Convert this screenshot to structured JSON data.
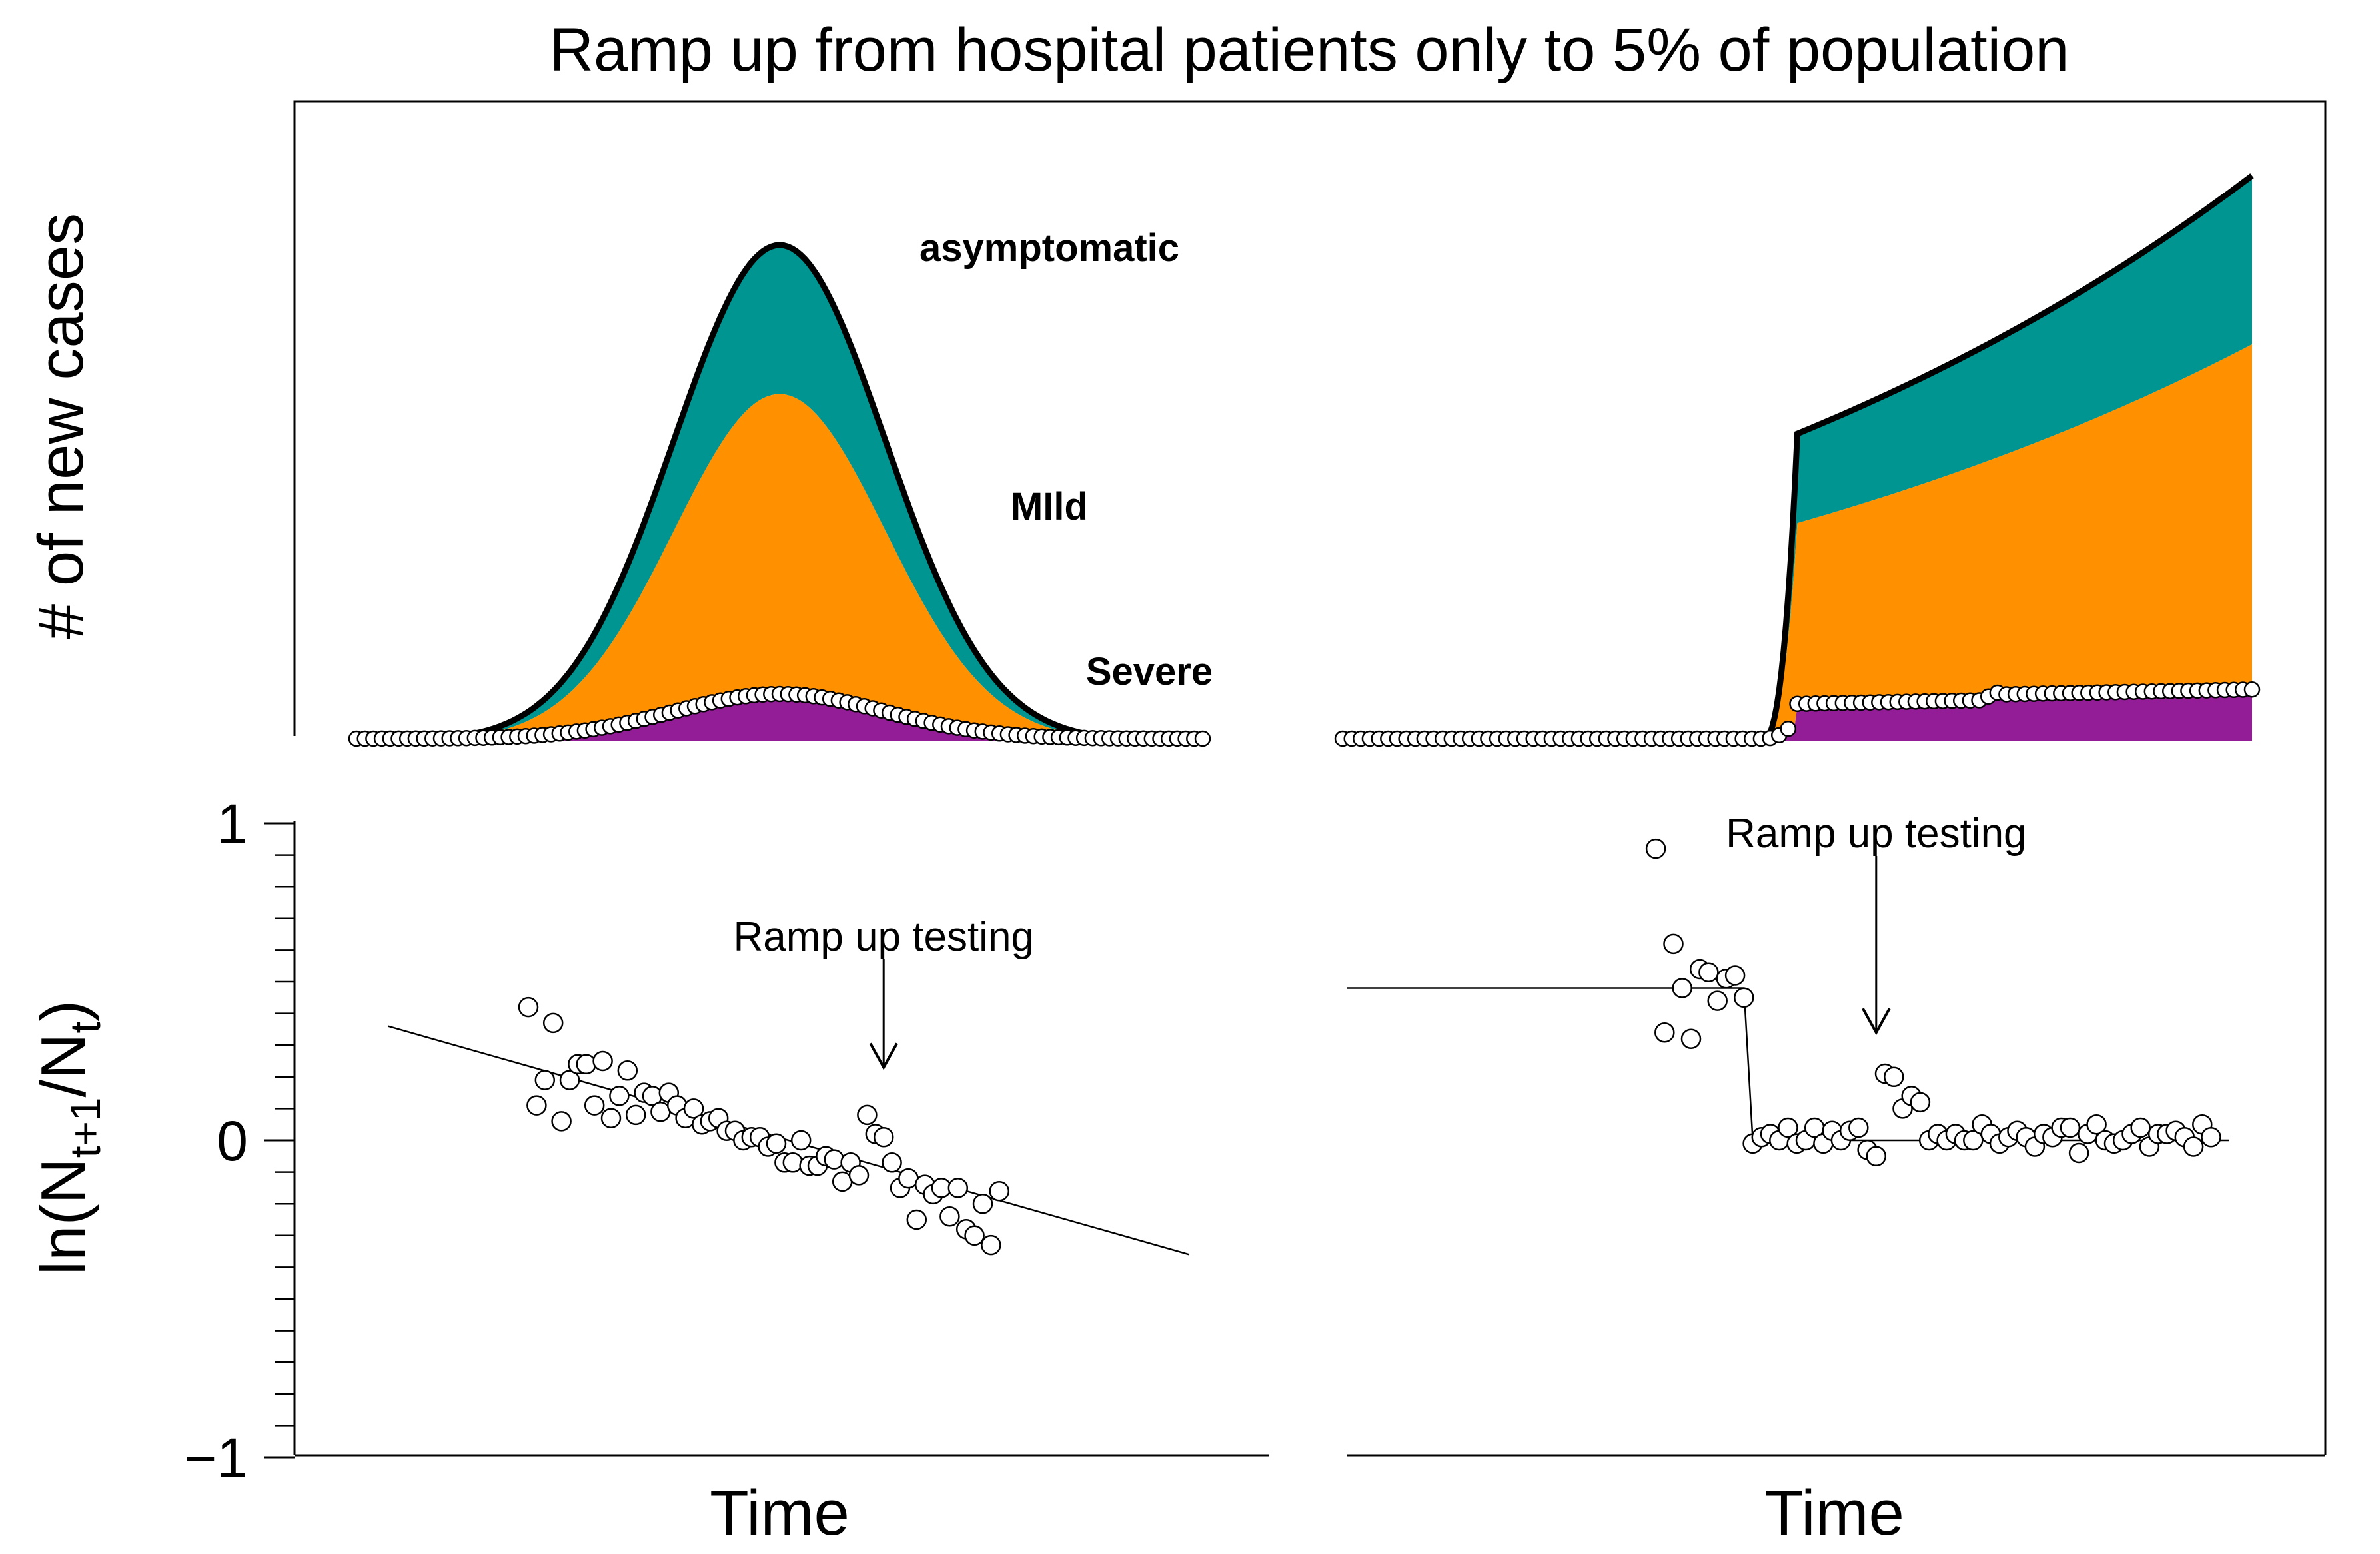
{
  "chart_data": {
    "type": "area",
    "title": "Ramp up from hospital patients only to 5% of population",
    "colors": {
      "asymptomatic": "#009590",
      "mild": "#ff9100",
      "severe": "#921d97",
      "outline": "#000000",
      "points_fill": "#ffffff",
      "points_stroke": "#000000"
    },
    "top": {
      "ylabel": "# of new cases",
      "legend": {
        "asymptomatic": "asymptomatic",
        "mild": "MIld",
        "severe": "Severe"
      },
      "left_panel": {
        "x": [
          0,
          100
        ],
        "total_peak": {
          "t": 50,
          "value": 100,
          "sigma": 12.5
        },
        "mild_plus_severe_peak": 70,
        "severe_peak": 9,
        "observed_note": "open circles follow the severe (hospital) counts"
      },
      "right_panel": {
        "x": [
          0,
          100
        ],
        "growth_start": 46,
        "testing_ramp_t": 50,
        "total_at_ramp": 62,
        "total_at_end": 114,
        "mild_plus_severe_at_ramp": 44,
        "mild_plus_severe_at_end": 80,
        "severe_at_ramp": 7,
        "severe_at_end": 11
      }
    },
    "bottom": {
      "xlabel_left": "Time",
      "xlabel_right": "Time",
      "ylabel_base": "ln(N",
      "ylabel_sub1": "t+1",
      "ylabel_mid": "/N",
      "ylabel_sub2": "t",
      "ylabel_end": ")",
      "ylim": [
        -1,
        1
      ],
      "yticks": [
        {
          "value": 1,
          "label": "1"
        },
        {
          "value": 0,
          "label": "0"
        },
        {
          "value": -1,
          "label": "−1"
        }
      ],
      "left_panel": {
        "annotation": "Ramp up testing",
        "annotation_t": 63,
        "arrow_tip_value": 0.23,
        "fit_line": {
          "x": [
            3,
            100
          ],
          "y": [
            0.36,
            -0.36
          ]
        },
        "points": [
          [
            20,
            0.42
          ],
          [
            21,
            0.11
          ],
          [
            22,
            0.19
          ],
          [
            23,
            0.37
          ],
          [
            24,
            0.06
          ],
          [
            25,
            0.19
          ],
          [
            26,
            0.24
          ],
          [
            27,
            0.24
          ],
          [
            28,
            0.11
          ],
          [
            29,
            0.25
          ],
          [
            30,
            0.07
          ],
          [
            31,
            0.14
          ],
          [
            32,
            0.22
          ],
          [
            33,
            0.08
          ],
          [
            34,
            0.15
          ],
          [
            35,
            0.14
          ],
          [
            36,
            0.09
          ],
          [
            37,
            0.15
          ],
          [
            38,
            0.11
          ],
          [
            39,
            0.07
          ],
          [
            40,
            0.1
          ],
          [
            41,
            0.05
          ],
          [
            42,
            0.06
          ],
          [
            43,
            0.07
          ],
          [
            44,
            0.03
          ],
          [
            45,
            0.03
          ],
          [
            46,
            0.0
          ],
          [
            47,
            0.01
          ],
          [
            48,
            0.01
          ],
          [
            49,
            -0.02
          ],
          [
            50,
            -0.01
          ],
          [
            51,
            -0.07
          ],
          [
            52,
            -0.07
          ],
          [
            53,
            0.0
          ],
          [
            54,
            -0.08
          ],
          [
            55,
            -0.08
          ],
          [
            56,
            -0.05
          ],
          [
            57,
            -0.06
          ],
          [
            58,
            -0.13
          ],
          [
            59,
            -0.07
          ],
          [
            60,
            -0.11
          ],
          [
            61,
            0.08
          ],
          [
            62,
            0.02
          ],
          [
            63,
            0.01
          ],
          [
            64,
            -0.07
          ],
          [
            65,
            -0.15
          ],
          [
            66,
            -0.12
          ],
          [
            67,
            -0.25
          ],
          [
            68,
            -0.14
          ],
          [
            69,
            -0.17
          ],
          [
            70,
            -0.15
          ],
          [
            71,
            -0.24
          ],
          [
            72,
            -0.15
          ],
          [
            73,
            -0.28
          ],
          [
            74,
            -0.3
          ],
          [
            75,
            -0.2
          ],
          [
            76,
            -0.33
          ],
          [
            77,
            -0.16
          ]
        ]
      },
      "right_panel": {
        "annotation": "Ramp up testing",
        "annotation_t": 60,
        "arrow_tip_value": 0.34,
        "step_line": [
          [
            0,
            0.48
          ],
          [
            45,
            0.48
          ],
          [
            46,
            0.0
          ],
          [
            100,
            0.0
          ]
        ],
        "points": [
          [
            35,
            0.92
          ],
          [
            36,
            0.34
          ],
          [
            37,
            0.62
          ],
          [
            38,
            0.48
          ],
          [
            39,
            0.32
          ],
          [
            40,
            0.54
          ],
          [
            41,
            0.53
          ],
          [
            42,
            0.44
          ],
          [
            43,
            0.51
          ],
          [
            44,
            0.52
          ],
          [
            45,
            0.45
          ],
          [
            46,
            -0.01
          ],
          [
            47,
            0.01
          ],
          [
            48,
            0.02
          ],
          [
            49,
            0.0
          ],
          [
            50,
            0.04
          ],
          [
            51,
            -0.01
          ],
          [
            52,
            0.0
          ],
          [
            53,
            0.04
          ],
          [
            54,
            -0.01
          ],
          [
            55,
            0.03
          ],
          [
            56,
            0.0
          ],
          [
            57,
            0.03
          ],
          [
            58,
            0.04
          ],
          [
            59,
            -0.03
          ],
          [
            60,
            -0.05
          ],
          [
            61,
            0.21
          ],
          [
            62,
            0.2
          ],
          [
            63,
            0.1
          ],
          [
            64,
            0.14
          ],
          [
            65,
            0.12
          ],
          [
            66,
            0.0
          ],
          [
            67,
            0.02
          ],
          [
            68,
            0.0
          ],
          [
            69,
            0.02
          ],
          [
            70,
            0.0
          ],
          [
            71,
            0.0
          ],
          [
            72,
            0.05
          ],
          [
            73,
            0.02
          ],
          [
            74,
            -0.01
          ],
          [
            75,
            0.01
          ],
          [
            76,
            0.03
          ],
          [
            77,
            0.01
          ],
          [
            78,
            -0.02
          ],
          [
            79,
            0.02
          ],
          [
            80,
            0.01
          ],
          [
            81,
            0.04
          ],
          [
            82,
            0.04
          ],
          [
            83,
            -0.04
          ],
          [
            84,
            0.02
          ],
          [
            85,
            0.05
          ],
          [
            86,
            0.0
          ],
          [
            87,
            -0.01
          ],
          [
            88,
            0.0
          ],
          [
            89,
            0.02
          ],
          [
            90,
            0.04
          ],
          [
            91,
            -0.02
          ],
          [
            92,
            0.02
          ],
          [
            93,
            0.02
          ],
          [
            94,
            0.03
          ],
          [
            95,
            0.01
          ],
          [
            96,
            -0.02
          ],
          [
            97,
            0.05
          ],
          [
            98,
            0.01
          ]
        ]
      }
    }
  }
}
